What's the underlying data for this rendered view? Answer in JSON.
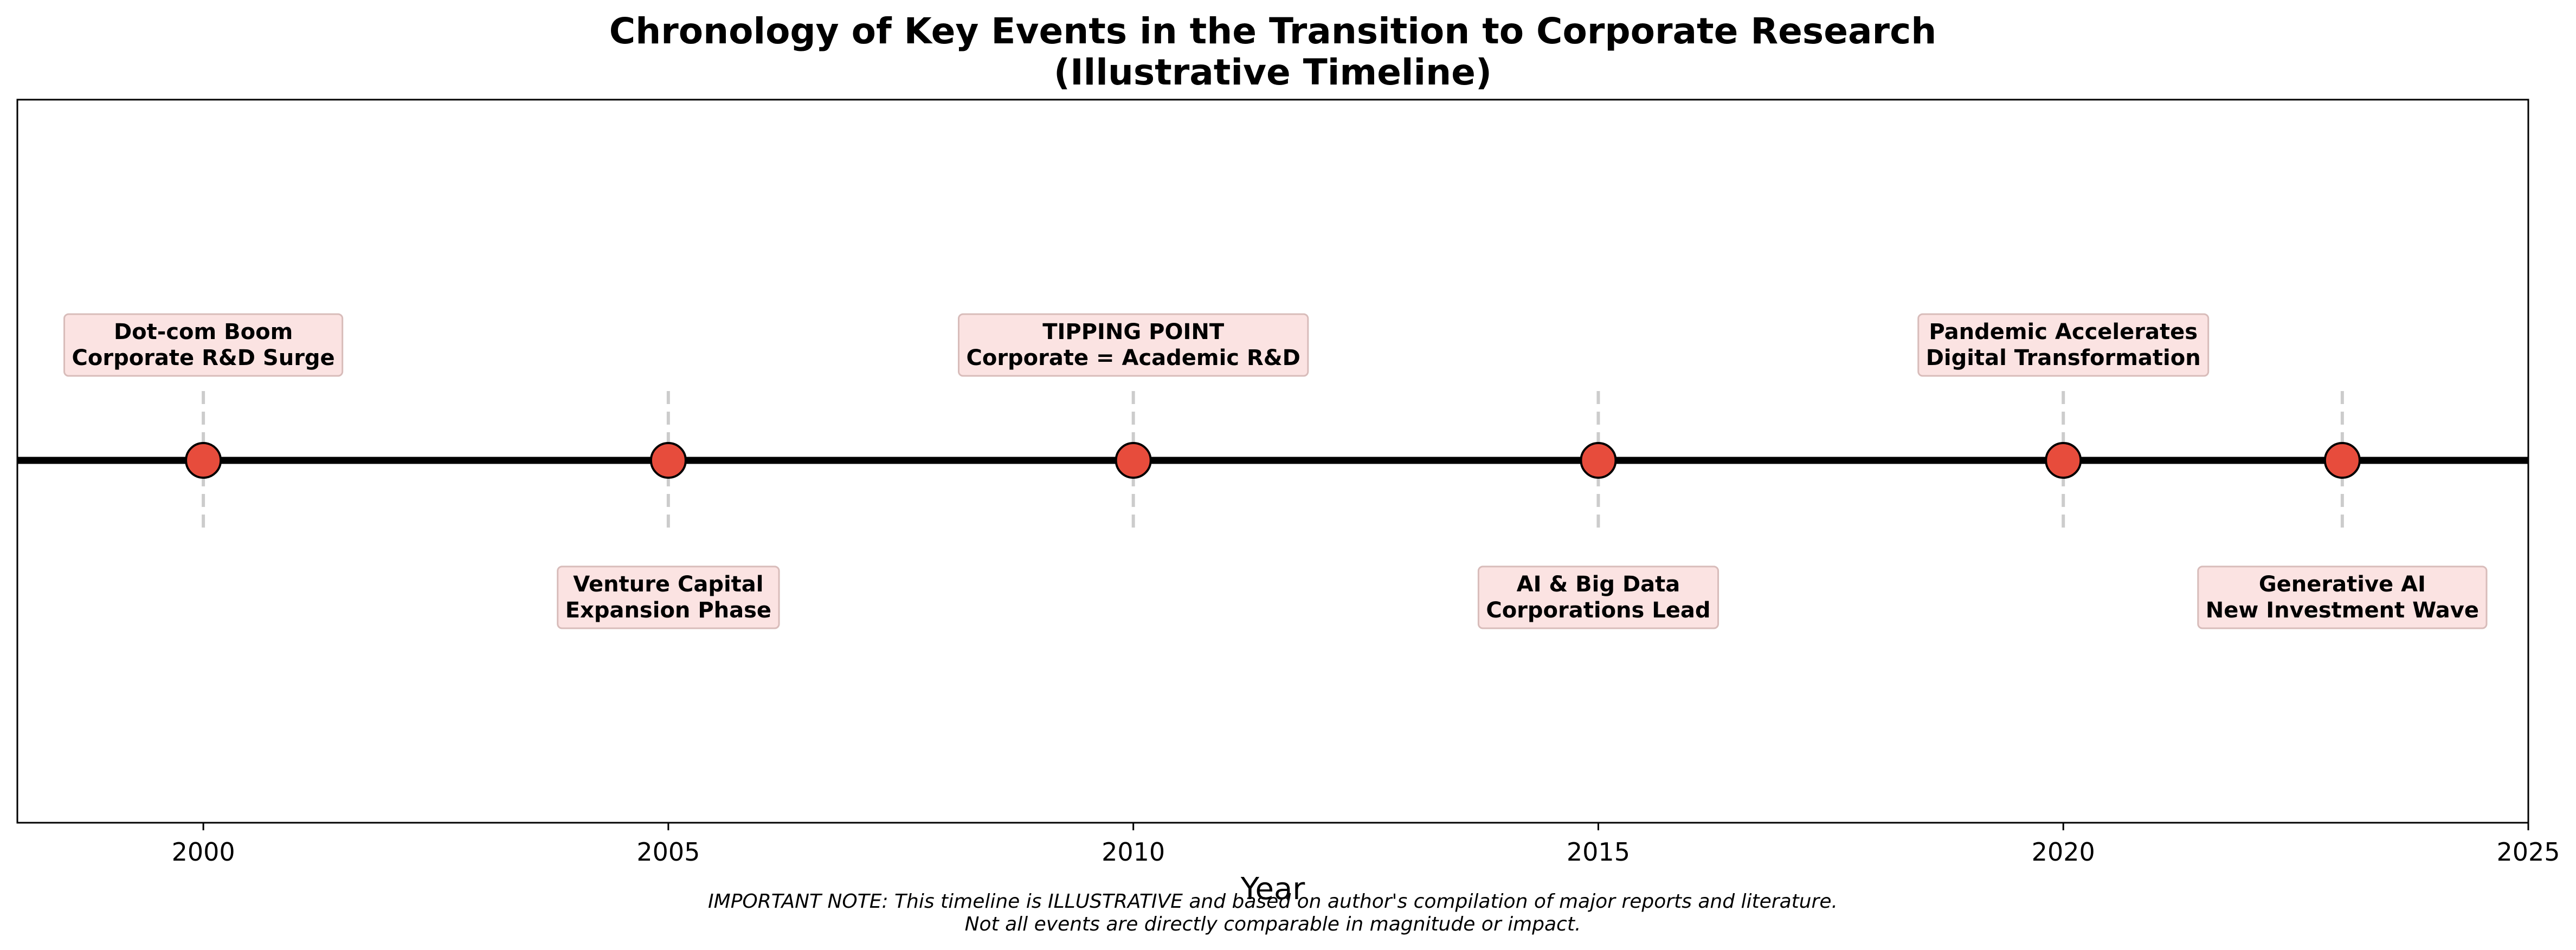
{
  "chart_data": {
    "type": "scatter",
    "title": "Chronology of Key Events in the Transition to Corporate Research\n(Illustrative Timeline)",
    "xlabel": "Year",
    "ylabel": "",
    "xlim": [
      1998,
      2025
    ],
    "xticks": [
      2000,
      2005,
      2010,
      2015,
      2020,
      2025
    ],
    "grid": false,
    "legend": "none",
    "events": [
      {
        "year": 2000,
        "label": "Dot-com Boom\nCorporate R&D Surge",
        "position": "above"
      },
      {
        "year": 2005,
        "label": "Venture Capital\nExpansion Phase",
        "position": "below"
      },
      {
        "year": 2010,
        "label": "TIPPING POINT\nCorporate = Academic R&D",
        "position": "above"
      },
      {
        "year": 2015,
        "label": "AI & Big Data\nCorporations Lead",
        "position": "below"
      },
      {
        "year": 2020,
        "label": "Pandemic Accelerates\nDigital Transformation",
        "position": "above"
      },
      {
        "year": 2023,
        "label": "Generative AI\nNew Investment Wave",
        "position": "below"
      }
    ],
    "note": "IMPORTANT NOTE: This timeline is ILLUSTRATIVE and based on author's compilation of major reports and literature.\nNot all events are directly comparable in magnitude or impact."
  },
  "colors": {
    "marker": "#e74c3c",
    "box_fill": "#fbe3e2",
    "box_edge": "#d8bcba",
    "guide": "#cccccc",
    "line": "#000000"
  }
}
